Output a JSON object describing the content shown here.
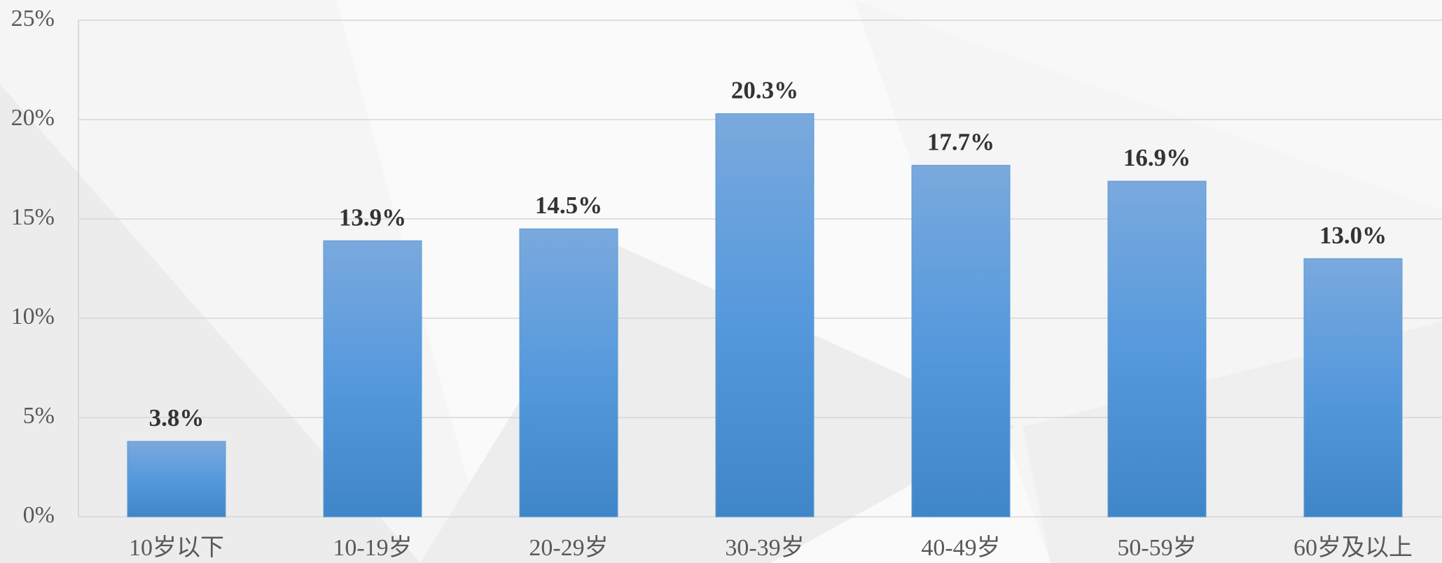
{
  "chart_data": {
    "type": "bar",
    "categories": [
      "10岁以下",
      "10-19岁",
      "20-29岁",
      "30-39岁",
      "40-49岁",
      "50-59岁",
      "60岁及以上"
    ],
    "values": [
      3.8,
      13.9,
      14.5,
      20.3,
      17.7,
      16.9,
      13.0
    ],
    "value_labels": [
      "3.8%",
      "13.9%",
      "14.5%",
      "20.3%",
      "17.7%",
      "16.9%",
      "13.0%"
    ],
    "color": "#5b9bd5",
    "ylim": [
      0,
      25
    ],
    "yticks": [
      {
        "value": 0,
        "label": "0%"
      },
      {
        "value": 5,
        "label": "5%"
      },
      {
        "value": 10,
        "label": "10%"
      },
      {
        "value": 15,
        "label": "15%"
      },
      {
        "value": 20,
        "label": "20%"
      },
      {
        "value": 25,
        "label": "25%"
      }
    ],
    "grid": true
  }
}
